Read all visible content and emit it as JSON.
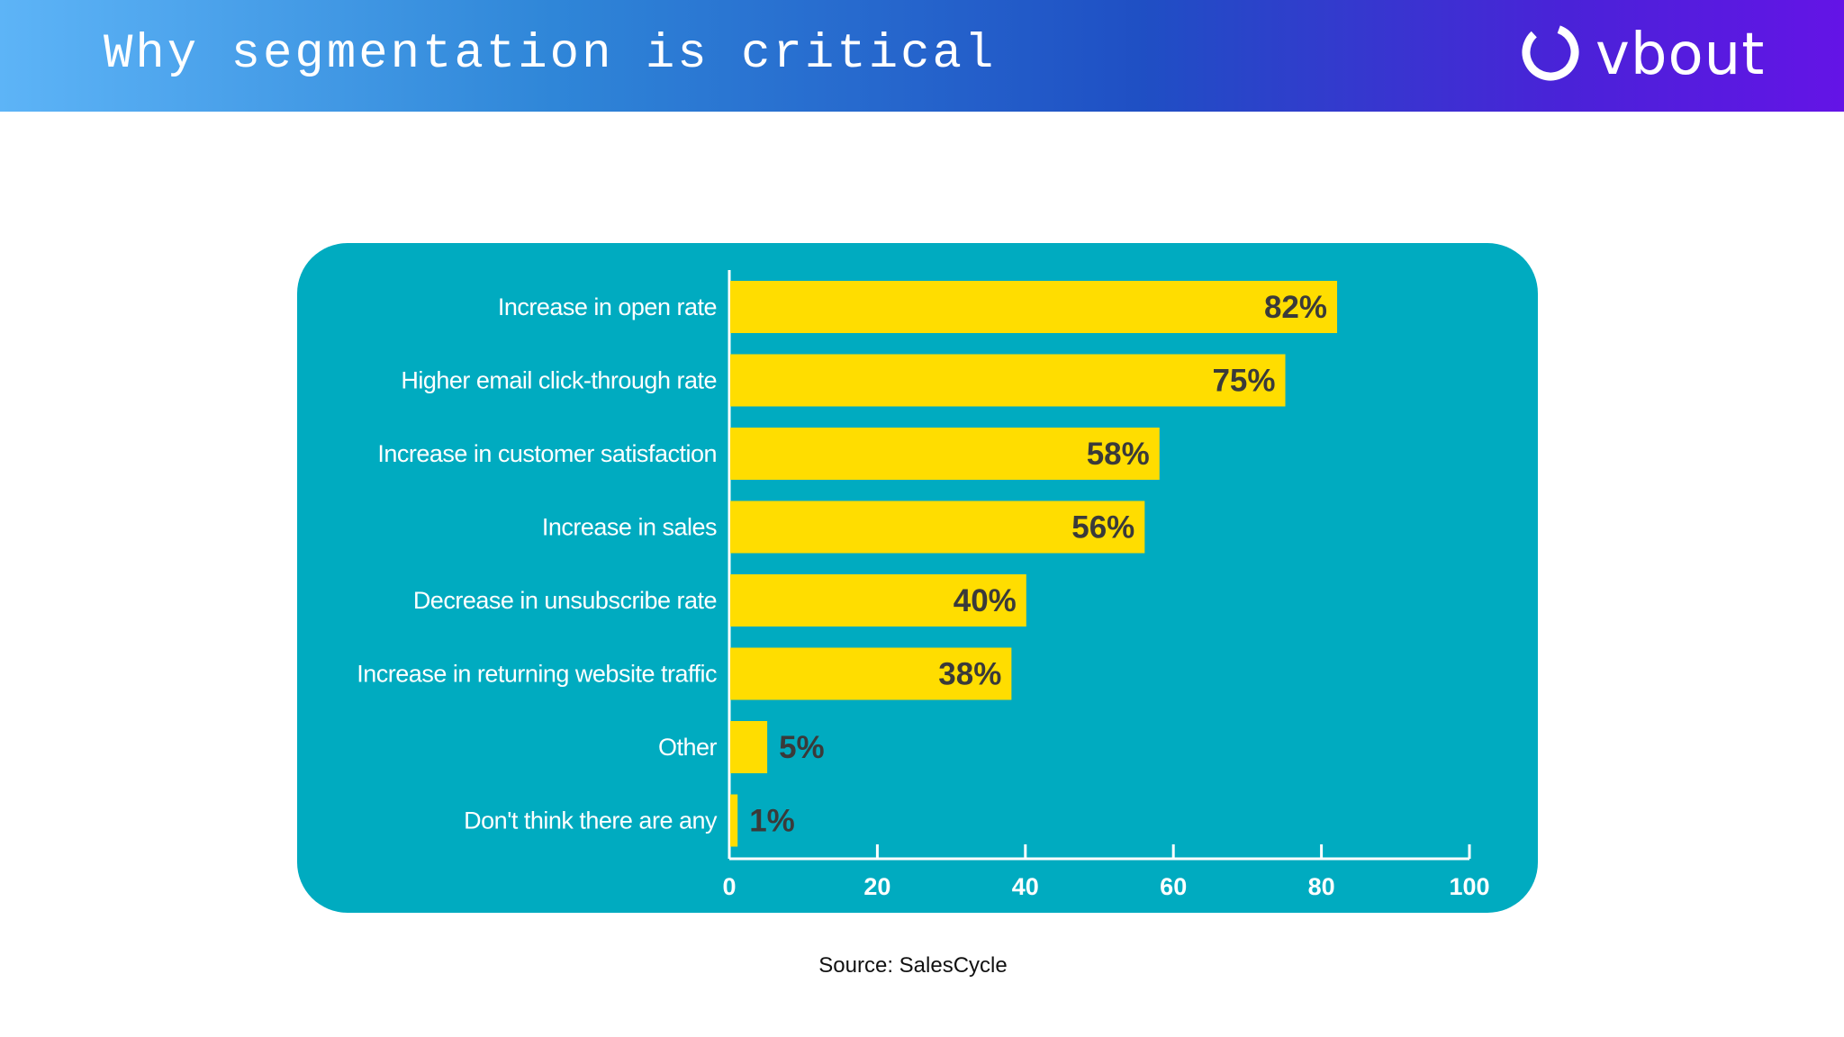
{
  "header": {
    "title": "Why segmentation is critical",
    "logo_text": "vbout",
    "logo_icon": "ring-logo-icon"
  },
  "colors": {
    "panel": "#00abc0",
    "bar": "#ffdd00",
    "value_label": "#3a3a3a",
    "category_label": "#ffffff",
    "axis": "#ffffff"
  },
  "chart_data": {
    "type": "bar",
    "orientation": "horizontal",
    "categories": [
      "Increase in open rate",
      "Higher email click-through rate",
      "Increase in customer satisfaction",
      "Increase in sales",
      "Decrease in unsubscribe rate",
      "Increase in returning website traffic",
      "Other",
      "Don't think there are any"
    ],
    "values": [
      82,
      75,
      58,
      56,
      40,
      38,
      5,
      1
    ],
    "value_labels": [
      "82%",
      "75%",
      "58%",
      "56%",
      "40%",
      "38%",
      "5%",
      "1%"
    ],
    "xlim": [
      0,
      100
    ],
    "xticks": [
      0,
      20,
      40,
      60,
      80,
      100
    ],
    "grid": false,
    "legend": "none"
  },
  "source": "Source: SalesCycle"
}
